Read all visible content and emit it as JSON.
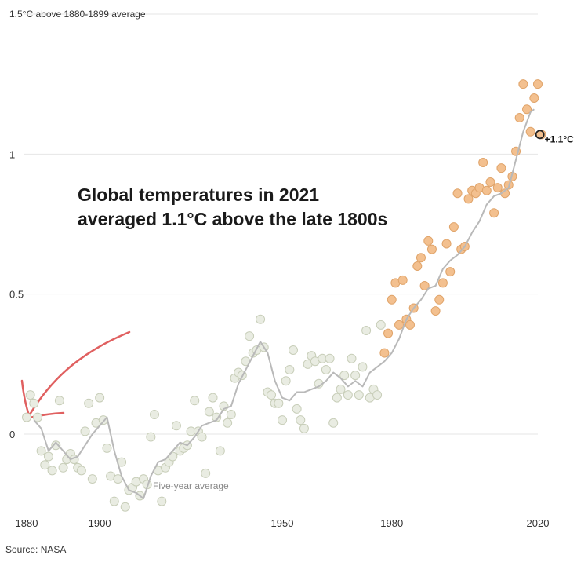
{
  "chart_data": {
    "type": "scatter",
    "title": "Global temperatures in 2021",
    "title_line2": "averaged 1.1°C above the late 1800s",
    "ylabel": "1.5°C above 1880-1899 average",
    "source": "Source: NASA",
    "xlim": [
      1880,
      2021
    ],
    "ylim": [
      -0.27,
      1.5
    ],
    "x_ticks": [
      1880,
      1900,
      1950,
      1980,
      2020
    ],
    "y_ticks": [
      {
        "value": 0,
        "label": "0"
      },
      {
        "value": 0.5,
        "label": "0.5"
      },
      {
        "value": 1,
        "label": "1"
      }
    ],
    "grid": true,
    "series": [
      {
        "x": [
          1880,
          1881,
          1882,
          1883,
          1884,
          1885,
          1886,
          1887,
          1888,
          1889,
          1890,
          1891,
          1892,
          1893,
          1894,
          1895,
          1896,
          1897,
          1898,
          1899,
          1900,
          1901,
          1902,
          1903,
          1904,
          1905,
          1906,
          1907,
          1908,
          1909,
          1910,
          1911,
          1912,
          1913,
          1914,
          1915,
          1916,
          1917,
          1918,
          1919,
          1920,
          1921,
          1922,
          1923,
          1924,
          1925,
          1926,
          1927,
          1928,
          1929,
          1930,
          1931,
          1932,
          1933,
          1934,
          1935,
          1936,
          1937,
          1938,
          1939,
          1940,
          1941,
          1942,
          1943,
          1944,
          1945,
          1946,
          1947,
          1948,
          1949,
          1950,
          1951,
          1952,
          1953,
          1954,
          1955,
          1956,
          1957,
          1958,
          1959,
          1960,
          1961,
          1962,
          1963,
          1964,
          1965,
          1966,
          1967,
          1968,
          1969,
          1970,
          1971,
          1972,
          1973,
          1974,
          1975,
          1976,
          1977,
          1978,
          1979,
          1980,
          1981,
          1982,
          1983,
          1984,
          1985,
          1986,
          1987,
          1988,
          1989,
          1990,
          1991,
          1992,
          1993,
          1994,
          1995,
          1996,
          1997,
          1998,
          1999,
          2000,
          2001,
          2002,
          2003,
          2004,
          2005,
          2006,
          2007,
          2008,
          2009,
          2010,
          2011,
          2012,
          2013,
          2014,
          2015,
          2016,
          2017,
          2018,
          2019,
          2020,
          2021
        ],
        "y": [
          0.06,
          0.14,
          0.11,
          0.06,
          -0.06,
          -0.11,
          -0.08,
          -0.13,
          -0.04,
          0.12,
          -0.12,
          -0.09,
          -0.07,
          -0.09,
          -0.12,
          -0.13,
          0.01,
          0.11,
          -0.16,
          0.04,
          0.13,
          0.05,
          -0.05,
          -0.15,
          -0.24,
          -0.16,
          -0.1,
          -0.26,
          -0.2,
          -0.19,
          -0.17,
          -0.22,
          -0.16,
          -0.18,
          -0.01,
          0.07,
          -0.13,
          -0.24,
          -0.12,
          -0.1,
          -0.08,
          0.03,
          -0.06,
          -0.05,
          -0.04,
          0.01,
          0.12,
          0.01,
          -0.01,
          -0.14,
          0.08,
          0.13,
          0.06,
          -0.06,
          0.1,
          0.04,
          0.07,
          0.2,
          0.22,
          0.21,
          0.26,
          0.35,
          0.29,
          0.3,
          0.41,
          0.31,
          0.15,
          0.14,
          0.11,
          0.11,
          0.05,
          0.19,
          0.23,
          0.3,
          0.09,
          0.05,
          0.02,
          0.25,
          0.28,
          0.26,
          0.18,
          0.27,
          0.23,
          0.27,
          0.04,
          0.13,
          0.16,
          0.21,
          0.14,
          0.27,
          0.21,
          0.14,
          0.24,
          0.37,
          0.13,
          0.16,
          0.14,
          0.39,
          0.29,
          0.36,
          0.48,
          0.54,
          0.39,
          0.55,
          0.41,
          0.39,
          0.45,
          0.6,
          0.63,
          0.53,
          0.69,
          0.66,
          0.44,
          0.48,
          0.54,
          0.68,
          0.58,
          0.74,
          0.86,
          0.66,
          0.67,
          0.84,
          0.87,
          0.86,
          0.88,
          0.97,
          0.87,
          0.9,
          0.79,
          0.88,
          0.95,
          0.86,
          0.89,
          0.92,
          1.01,
          1.13,
          1.25,
          1.16,
          1.08,
          1.2,
          1.25,
          1.07
        ]
      }
    ],
    "trend": {
      "name": "Five-year average",
      "x": [
        1882,
        1884,
        1886,
        1888,
        1890,
        1892,
        1894,
        1896,
        1898,
        1900,
        1902,
        1904,
        1906,
        1908,
        1910,
        1912,
        1914,
        1916,
        1918,
        1920,
        1922,
        1924,
        1926,
        1928,
        1930,
        1932,
        1934,
        1936,
        1938,
        1940,
        1942,
        1944,
        1946,
        1948,
        1950,
        1952,
        1954,
        1956,
        1958,
        1960,
        1962,
        1964,
        1966,
        1968,
        1970,
        1972,
        1974,
        1976,
        1978,
        1980,
        1982,
        1984,
        1986,
        1988,
        1990,
        1992,
        1994,
        1996,
        1998,
        2000,
        2002,
        2004,
        2006,
        2008,
        2010,
        2012,
        2014,
        2016,
        2018,
        2019
      ],
      "y": [
        0.05,
        0.02,
        -0.06,
        -0.03,
        -0.06,
        -0.09,
        -0.08,
        -0.04,
        0.0,
        0.03,
        0.06,
        -0.06,
        -0.15,
        -0.2,
        -0.21,
        -0.23,
        -0.15,
        -0.1,
        -0.09,
        -0.06,
        -0.03,
        -0.04,
        -0.01,
        0.03,
        0.04,
        0.05,
        0.09,
        0.1,
        0.18,
        0.23,
        0.28,
        0.33,
        0.29,
        0.19,
        0.13,
        0.12,
        0.15,
        0.15,
        0.16,
        0.17,
        0.19,
        0.22,
        0.2,
        0.17,
        0.19,
        0.17,
        0.22,
        0.24,
        0.26,
        0.29,
        0.34,
        0.41,
        0.45,
        0.48,
        0.52,
        0.53,
        0.59,
        0.62,
        0.64,
        0.67,
        0.72,
        0.76,
        0.82,
        0.85,
        0.86,
        0.88,
        0.98,
        1.08,
        1.15,
        1.16
      ]
    },
    "callout": {
      "x": 2021,
      "y": 1.07,
      "label": "+1.1°C"
    },
    "colors": {
      "early_fill": "#e9ece2",
      "early_stroke": "#c8ceb9",
      "late_fill": "#f3c08f",
      "late_stroke": "#e0a46a",
      "trend_line": "#b9b9b9",
      "gridline": "#e6e6e6",
      "red_arrow": "#e06060"
    }
  }
}
